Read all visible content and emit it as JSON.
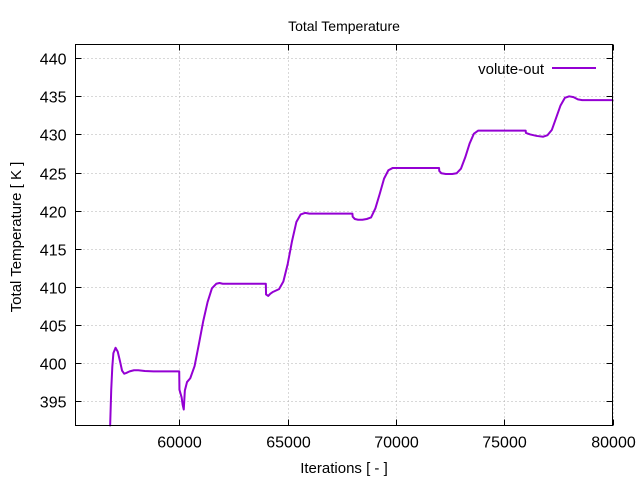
{
  "chart_data": {
    "type": "line",
    "title": "Total Temperature",
    "xlabel": "Iterations [ - ]",
    "ylabel": "Total Temperature [ K ]",
    "xlim": [
      55200,
      80000
    ],
    "ylim": [
      391.8,
      441.8
    ],
    "xticks": [
      60000,
      65000,
      70000,
      75000,
      80000
    ],
    "yticks": [
      395,
      400,
      405,
      410,
      415,
      420,
      425,
      430,
      435,
      440
    ],
    "grid": true,
    "legend_position": "top-right",
    "series": [
      {
        "name": "volute-out",
        "color": "#9400d3",
        "x": [
          56800,
          56850,
          56900,
          56950,
          57050,
          57150,
          57250,
          57350,
          57450,
          57550,
          57700,
          57900,
          58100,
          58400,
          58800,
          59200,
          59600,
          59990,
          60000,
          60050,
          60100,
          60150,
          60200,
          60250,
          60350,
          60500,
          60700,
          60900,
          61100,
          61300,
          61500,
          61700,
          61850,
          62000,
          62500,
          63000,
          63500,
          63990,
          64000,
          64100,
          64200,
          64300,
          64450,
          64600,
          64800,
          65000,
          65200,
          65400,
          65600,
          65800,
          66000,
          66500,
          67000,
          67500,
          67990,
          68000,
          68100,
          68250,
          68450,
          68650,
          68850,
          69050,
          69250,
          69450,
          69650,
          69850,
          70000,
          70500,
          71000,
          71500,
          71990,
          72000,
          72100,
          72300,
          72600,
          72800,
          73000,
          73200,
          73400,
          73600,
          73800,
          74000,
          74500,
          75000,
          75500,
          75990,
          76000,
          76200,
          76500,
          76800,
          77000,
          77200,
          77400,
          77600,
          77800,
          78000,
          78200,
          78400,
          78600,
          78800,
          79200,
          79600,
          80000
        ],
        "y": [
          391.8,
          396.5,
          399.5,
          401.3,
          402.0,
          401.5,
          400.3,
          399.0,
          398.6,
          398.7,
          398.9,
          399.05,
          399.05,
          398.95,
          398.9,
          398.9,
          398.9,
          398.9,
          396.5,
          396.0,
          395.5,
          394.5,
          393.9,
          396.4,
          397.5,
          398.0,
          399.6,
          402.5,
          405.5,
          408.0,
          409.8,
          410.4,
          410.5,
          410.4,
          410.4,
          410.4,
          410.4,
          410.4,
          409.0,
          408.8,
          409.1,
          409.3,
          409.5,
          409.7,
          410.7,
          413.0,
          416.0,
          418.5,
          419.5,
          419.7,
          419.6,
          419.6,
          419.6,
          419.6,
          419.6,
          419.2,
          418.9,
          418.8,
          418.8,
          418.9,
          419.1,
          420.3,
          422.2,
          424.2,
          425.3,
          425.6,
          425.6,
          425.6,
          425.6,
          425.6,
          425.6,
          425.2,
          424.9,
          424.8,
          424.8,
          424.9,
          425.5,
          427.0,
          428.8,
          430.1,
          430.5,
          430.5,
          430.5,
          430.5,
          430.5,
          430.5,
          430.2,
          430.0,
          429.8,
          429.7,
          429.9,
          430.6,
          432.2,
          433.8,
          434.8,
          435.0,
          434.9,
          434.6,
          434.5,
          434.5,
          434.5,
          434.5,
          434.5
        ]
      }
    ]
  }
}
